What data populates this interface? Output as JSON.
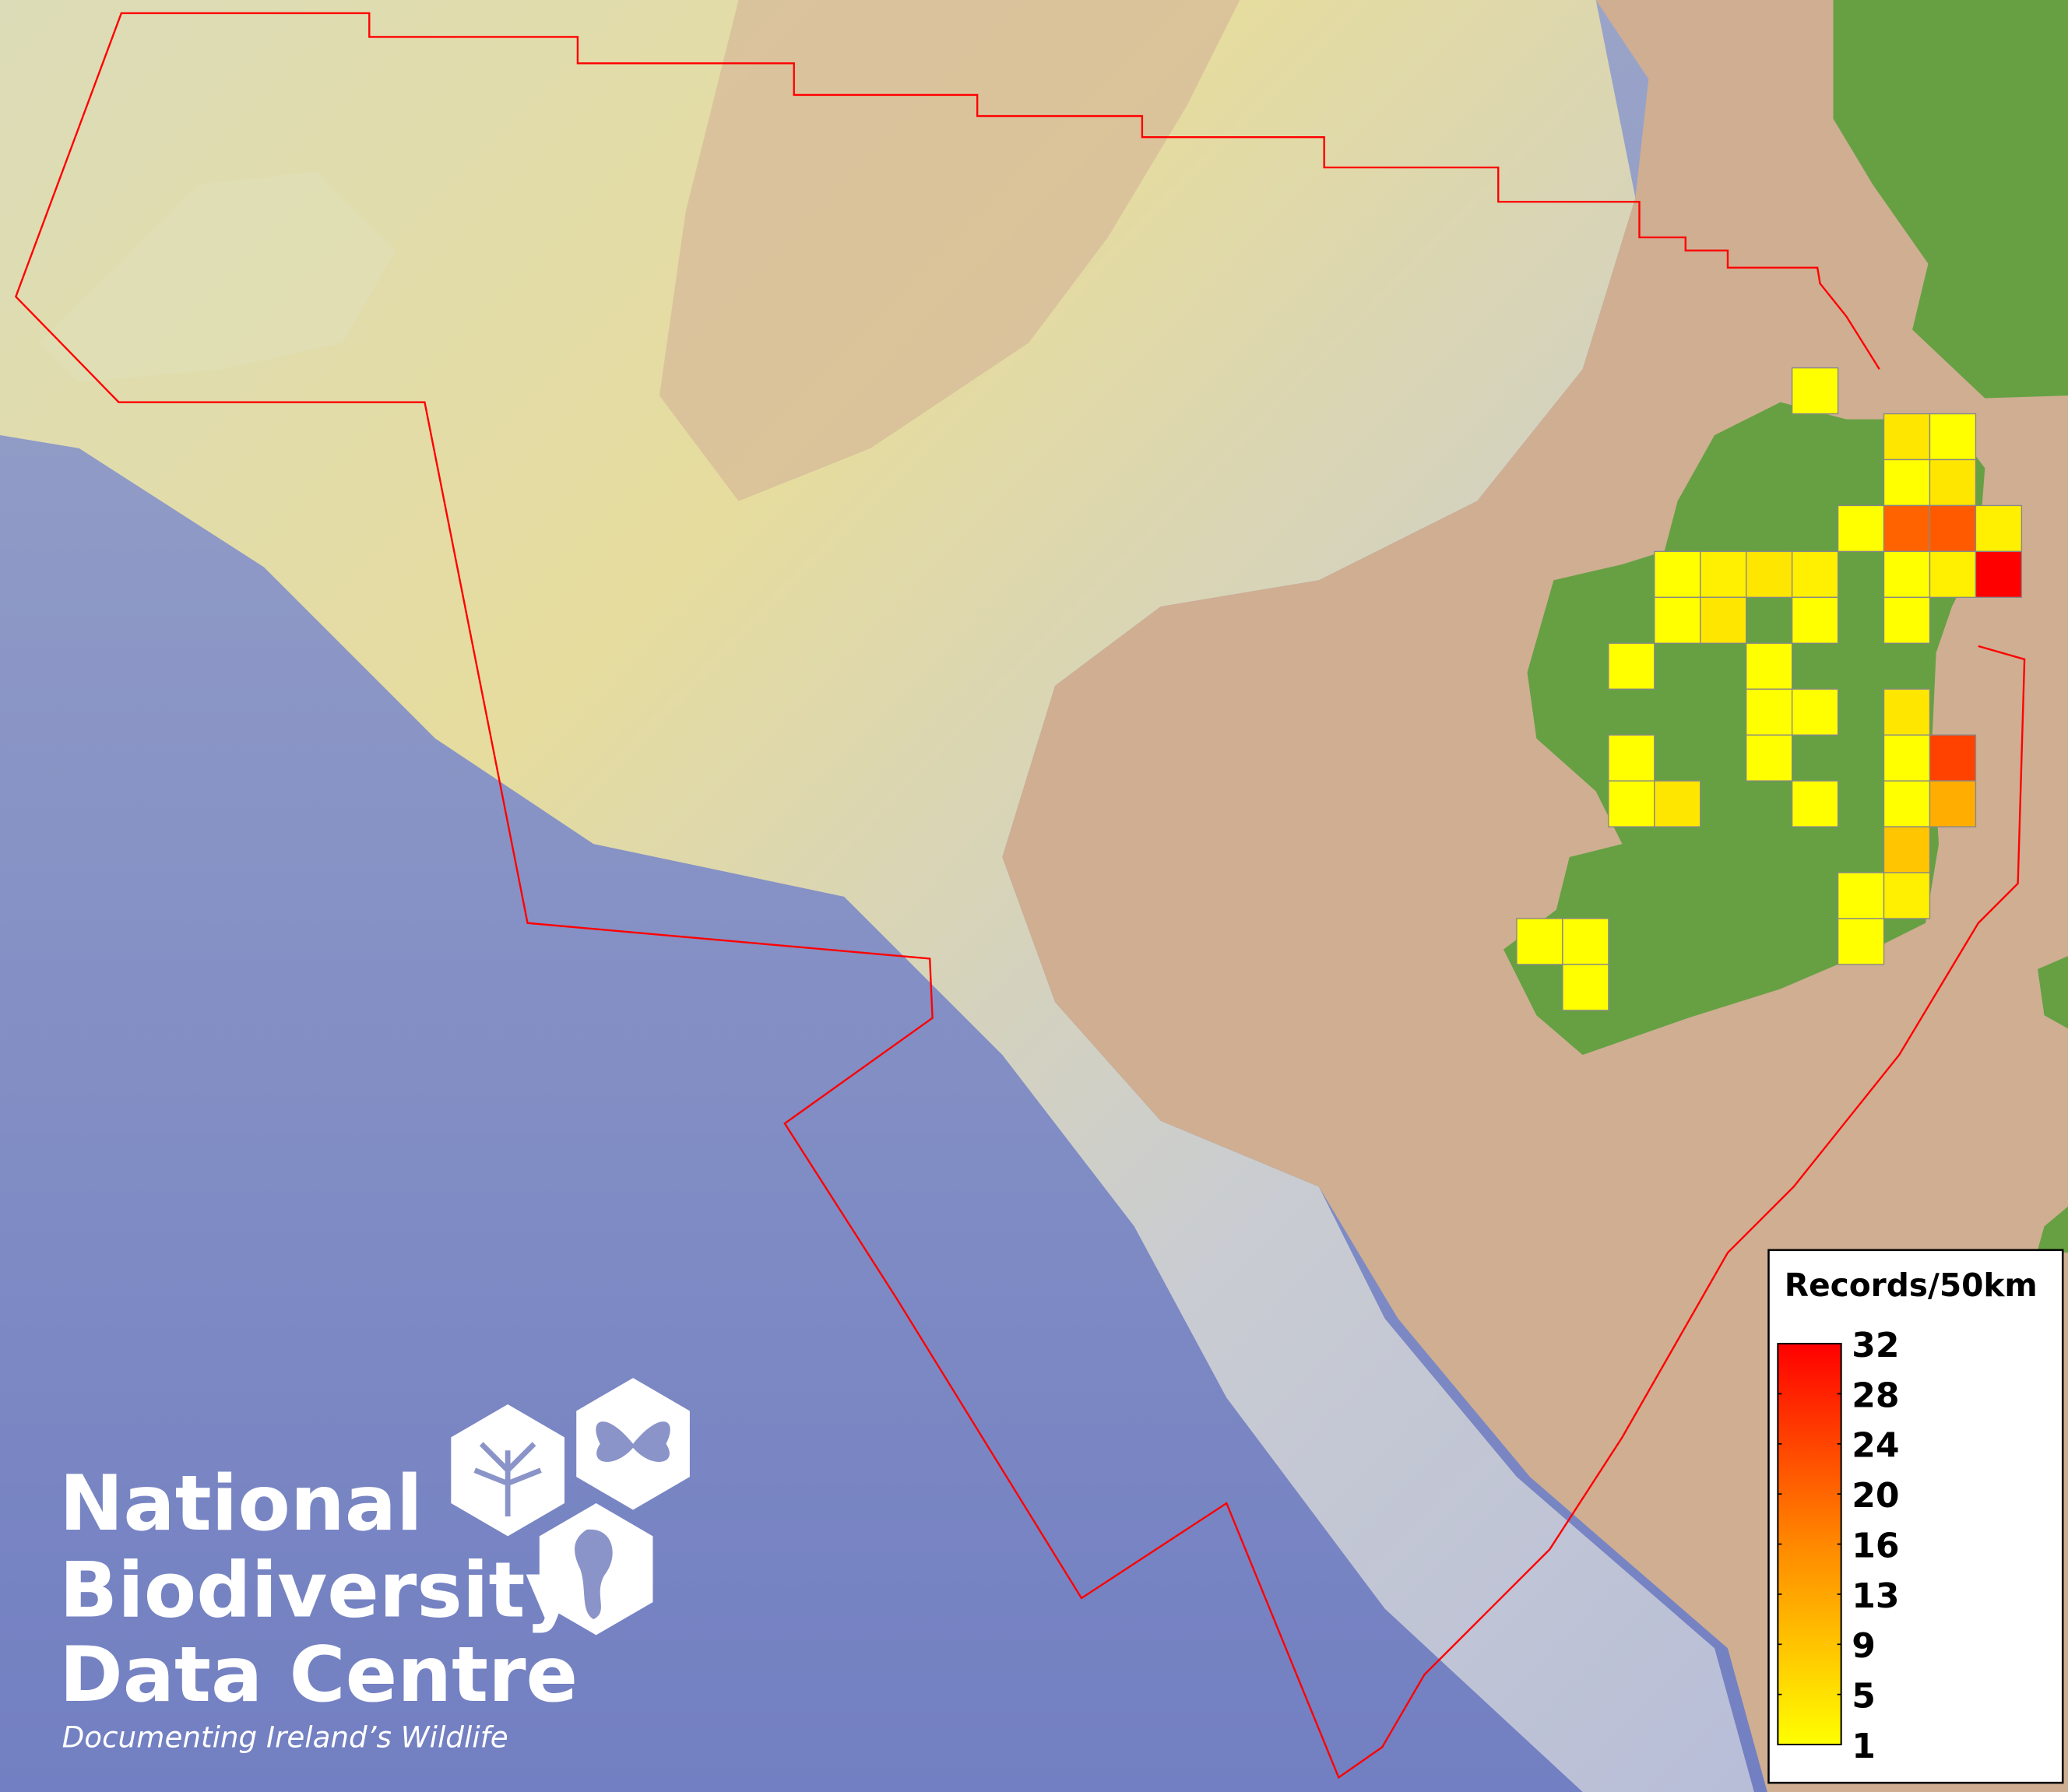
{
  "map": {
    "colors": {
      "deep_sea": "#7a86c8",
      "shelf": "#e4dca6",
      "shallow": "#cfae92",
      "land": "#66a043",
      "boundary": "#ff0000",
      "cell_border": "#888888"
    },
    "grid_records": [
      [
        null,
        null,
        null,
        null,
        null,
        null,
        1,
        null,
        null,
        null,
        null
      ],
      [
        null,
        null,
        null,
        null,
        null,
        null,
        null,
        null,
        4,
        1,
        null
      ],
      [
        null,
        null,
        null,
        null,
        null,
        null,
        null,
        null,
        1,
        4,
        null
      ],
      [
        null,
        null,
        null,
        null,
        null,
        null,
        null,
        1,
        20,
        21,
        3
      ],
      [
        null,
        null,
        null,
        1,
        3,
        4,
        3,
        null,
        1,
        3,
        32
      ],
      [
        null,
        null,
        null,
        1,
        4,
        null,
        1,
        null,
        1,
        null,
        null
      ],
      [
        null,
        null,
        1,
        null,
        null,
        1,
        null,
        null,
        null,
        null,
        null
      ],
      [
        null,
        null,
        null,
        null,
        null,
        1,
        1,
        null,
        4,
        null,
        null
      ],
      [
        null,
        null,
        1,
        null,
        null,
        1,
        null,
        null,
        1,
        24,
        null
      ],
      [
        null,
        null,
        1,
        4,
        null,
        null,
        1,
        null,
        1,
        11,
        null
      ],
      [
        null,
        null,
        null,
        null,
        null,
        null,
        null,
        null,
        8,
        null,
        null
      ],
      [
        null,
        null,
        null,
        null,
        null,
        null,
        null,
        1,
        3,
        null,
        null
      ],
      [
        1,
        1,
        null,
        null,
        null,
        null,
        null,
        1,
        null,
        null,
        null
      ],
      [
        null,
        1,
        null,
        null,
        null,
        null,
        null,
        null,
        null,
        null,
        null
      ]
    ]
  },
  "legend": {
    "title": "Records/50km",
    "min": 1,
    "max": 32,
    "color_low": "#ffff00",
    "color_high": "#ff0000",
    "labels": [
      "32",
      "28",
      "24",
      "20",
      "16",
      "13",
      "9",
      "5",
      "1"
    ]
  },
  "logo": {
    "line1": "National",
    "line2": "Biodiversity",
    "line3": "Data Centre",
    "tagline": "Documenting Ireland’s Wildlife",
    "icons": [
      "tree-icon",
      "butterfly-icon",
      "seahorse-icon"
    ]
  }
}
